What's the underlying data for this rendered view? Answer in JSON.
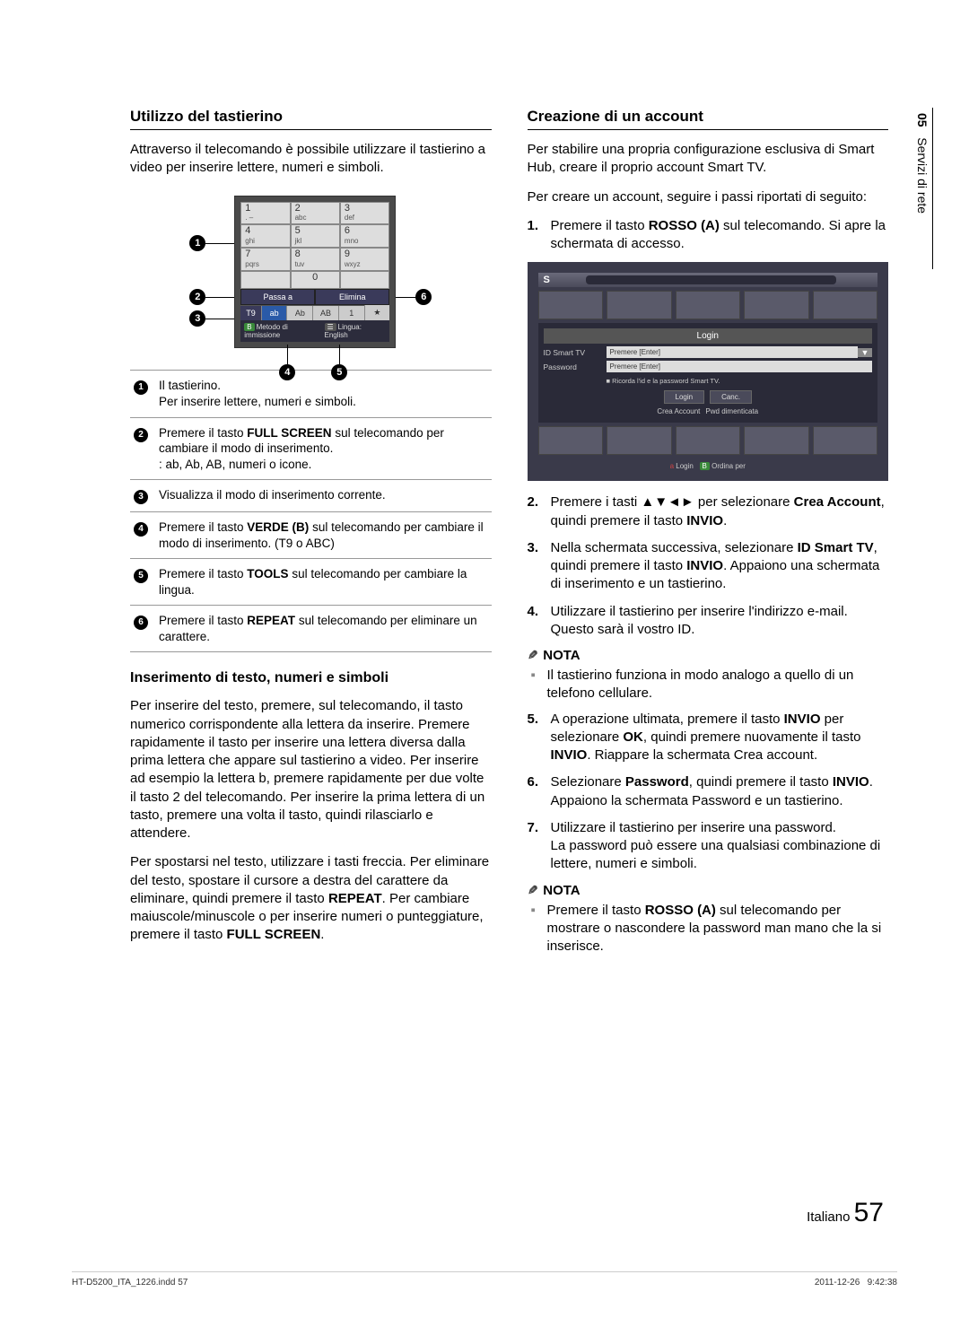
{
  "sideTab": {
    "num": "05",
    "label": "Servizi di rete"
  },
  "left": {
    "title1": "Utilizzo del tastierino",
    "intro": "Attraverso il telecomando è possibile utilizzare il tastierino a video per inserire lettere, numeri e simboli.",
    "keypad": {
      "keys": [
        [
          "1",
          ". – "
        ],
        [
          "2",
          "abc"
        ],
        [
          "3",
          "def"
        ],
        [
          "4",
          "ghi"
        ],
        [
          "5",
          "jkl"
        ],
        [
          "6",
          "mno"
        ],
        [
          "7",
          "pqrs"
        ],
        [
          "8",
          "tuv"
        ],
        [
          "9",
          "wxyz"
        ]
      ],
      "zero": "0",
      "passA": "Passa a",
      "elimina": "Elimina",
      "t9": "T9",
      "modes": [
        "ab",
        "Ab",
        "AB",
        "1",
        "★"
      ],
      "footerB": "B",
      "footerMethod": "Metodo di immissione",
      "footerToolIcon": "☰",
      "footerLang": "Lingua: English"
    },
    "legend": [
      "Il tastierino.\nPer inserire lettere, numeri e simboli.",
      "Premere il tasto <b>FULL SCREEN</b> sul telecomando per cambiare il modo di inserimento.\n: ab, Ab, AB, numeri o icone.",
      "Visualizza il modo di inserimento corrente.",
      "Premere il tasto <b>VERDE (B)</b> sul telecomando per cambiare il modo di inserimento. (T9 o ABC)",
      "Premere il tasto <b>TOOLS</b> sul telecomando per cambiare la lingua.",
      "Premere il tasto <b>REPEAT</b> sul telecomando per eliminare un carattere."
    ],
    "title2": "Inserimento di testo, numeri e simboli",
    "para2a": "Per inserire del testo, premere, sul telecomando, il tasto numerico corrispondente alla lettera da inserire. Premere rapidamente il tasto per inserire una lettera diversa dalla prima lettera che appare sul tastierino a video. Per inserire ad esempio la lettera b, premere rapidamente per due volte il tasto 2 del telecomando. Per inserire la prima lettera di un tasto, premere una volta il tasto, quindi rilasciarlo e attendere.",
    "para2b": "Per spostarsi nel testo, utilizzare i tasti freccia. Per eliminare del testo, spostare il cursore a destra del carattere da eliminare, quindi premere il tasto <b>REPEAT</b>. Per cambiare maiuscole/minuscole o per inserire numeri o punteggiature, premere il tasto <b>FULL SCREEN</b>."
  },
  "right": {
    "title1": "Creazione di un account",
    "intro1": "Per stabilire una propria configurazione esclusiva di Smart Hub, creare il proprio account Smart TV.",
    "intro2": "Per creare un account, seguire i passi riportati di seguito:",
    "steps": [
      {
        "n": "1.",
        "t": "Premere il tasto <b>ROSSO (A)</b> sul telecomando. Si apre la schermata di accesso."
      },
      {
        "n": "2.",
        "t": "Premere i tasti ▲▼◄► per selezionare <b>Crea Account</b>, quindi premere il tasto <b>INVIO</b>."
      },
      {
        "n": "3.",
        "t": "Nella schermata successiva, selezionare <b>ID Smart TV</b>, quindi premere il tasto <b>INVIO</b>. Appaiono una schermata di inserimento e un tastierino."
      },
      {
        "n": "4.",
        "t": "Utilizzare il tastierino per inserire l'indirizzo e-mail. Questo sarà il vostro ID."
      }
    ],
    "note1Head": "NOTA",
    "note1Text": "Il tastierino funziona in modo analogo a quello di un telefono cellulare.",
    "steps2": [
      {
        "n": "5.",
        "t": "A operazione ultimata, premere il tasto <b>INVIO</b> per selezionare <b>OK</b>, quindi premere nuovamente il tasto <b>INVIO</b>. Riappare la schermata Crea account."
      },
      {
        "n": "6.",
        "t": "Selezionare <b>Password</b>, quindi premere il tasto <b>INVIO</b>. Appaiono la schermata Password e un tastierino."
      },
      {
        "n": "7.",
        "t": "Utilizzare il tastierino per inserire una password.\nLa password può essere una qualsiasi combinazione di lettere, numeri e simboli."
      }
    ],
    "note2Head": "NOTA",
    "note2Text": "Premere il tasto <b>ROSSO (A)</b> sul telecomando per mostrare o nascondere la password man mano che la si inserisce.",
    "login": {
      "brand": "S",
      "title": "Login",
      "idLabel": "ID Smart TV",
      "idPlaceholder": "Premere [Enter]",
      "pwdLabel": "Password",
      "pwdPlaceholder": "Premere [Enter]",
      "remember": "Ricorda l'id e la password Smart TV.",
      "btnLogin": "Login",
      "btnCancel": "Canc.",
      "linkCreate": "Crea Account",
      "linkForgot": "Pwd dimenticata",
      "footerA": "Login",
      "footerB": "B",
      "footerSort": "Ordina per"
    }
  },
  "footer": {
    "lang": "Italiano",
    "page": "57"
  },
  "print": {
    "left": "HT-D5200_ITA_1226.indd   57",
    "date": "2011-12-26",
    "time": "9:42:38"
  }
}
